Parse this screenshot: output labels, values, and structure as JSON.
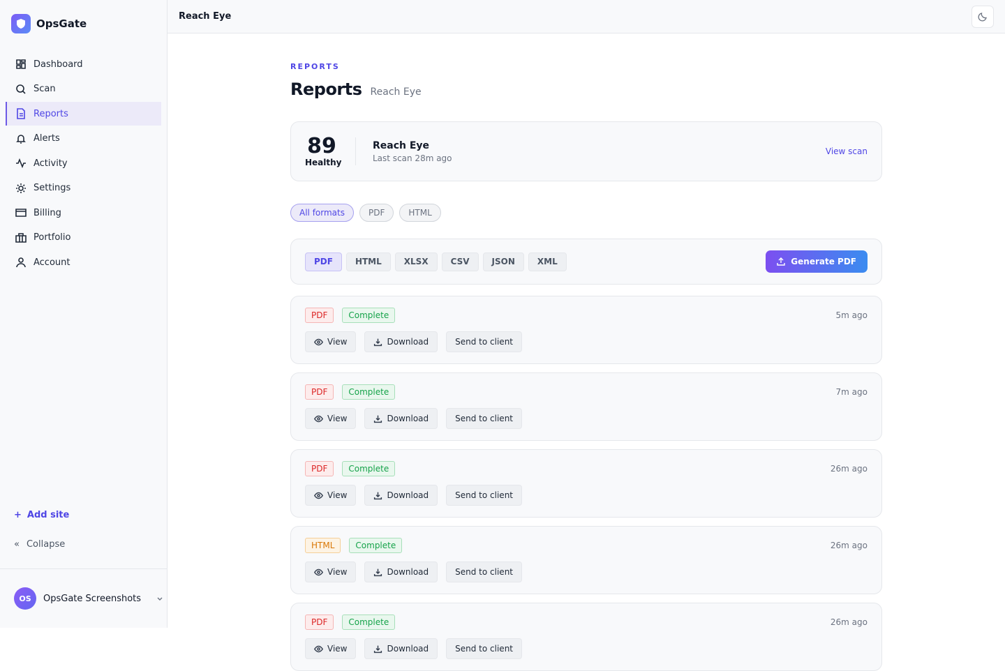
{
  "sidebar": {
    "brand": "OpsGate",
    "nav": [
      "Dashboard",
      "Scan",
      "Reports",
      "Alerts",
      "Activity",
      "Settings",
      "Billing",
      "Portfolio",
      "Account"
    ],
    "add_site": "Add site",
    "collapse": "Collapse",
    "user": {
      "initials": "OS",
      "name": "OpsGate Screenshots"
    }
  },
  "topbar": {
    "title": "Reach Eye"
  },
  "header": {
    "eyebrow": "REPORTS",
    "title": "Reports",
    "subtitle": "Reach Eye"
  },
  "summary": {
    "score": 89,
    "status": "Healthy",
    "site": "Reach Eye",
    "last_scan": "Last scan 28m ago",
    "link": "View scan"
  },
  "filters": [
    "All formats",
    "PDF",
    "HTML"
  ],
  "formats": [
    "PDF",
    "HTML",
    "XLSX",
    "CSV",
    "JSON",
    "XML"
  ],
  "generate": "Generate PDF",
  "reports": [
    {
      "format": "PDF",
      "status": "Complete",
      "time": "5m ago",
      "actions": [
        "View",
        "Download",
        "Send to client"
      ]
    },
    {
      "format": "PDF",
      "status": "Complete",
      "time": "7m ago",
      "actions": [
        "View",
        "Download",
        "Send to client"
      ]
    },
    {
      "format": "PDF",
      "status": "Complete",
      "time": "26m ago",
      "actions": [
        "View",
        "Download",
        "Send to client"
      ]
    },
    {
      "format": "HTML",
      "status": "Complete",
      "time": "26m ago",
      "actions": [
        "View",
        "Download",
        "Send to client"
      ]
    },
    {
      "format": "PDF",
      "status": "Complete",
      "time": "26m ago",
      "actions": [
        "View",
        "Download",
        "Send to client"
      ]
    }
  ]
}
